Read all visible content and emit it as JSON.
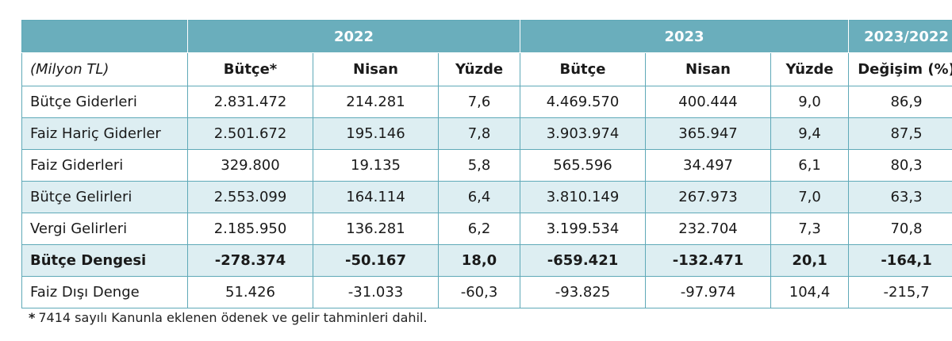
{
  "header": {
    "year_2022": "2022",
    "year_2023": "2023",
    "change_period": "2023/2022"
  },
  "subheader": {
    "unit": "(Milyon TL)",
    "butce_star": "Bütçe*",
    "nisan_2022": "Nisan",
    "yuzde_2022": "Yüzde",
    "butce_2023": "Bütçe",
    "nisan_2023": "Nisan",
    "yuzde_2023": "Yüzde",
    "degisim": "Değişim (%)"
  },
  "rows": [
    {
      "label": "Bütçe Giderleri",
      "b22": "2.831.472",
      "n22": "214.281",
      "y22": "7,6",
      "b23": "4.469.570",
      "n23": "400.444",
      "y23": "9,0",
      "chg": "86,9"
    },
    {
      "label": "Faiz Hariç Giderler",
      "b22": "2.501.672",
      "n22": "195.146",
      "y22": "7,8",
      "b23": "3.903.974",
      "n23": "365.947",
      "y23": "9,4",
      "chg": "87,5"
    },
    {
      "label": "Faiz Giderleri",
      "b22": "329.800",
      "n22": "19.135",
      "y22": "5,8",
      "b23": "565.596",
      "n23": "34.497",
      "y23": "6,1",
      "chg": "80,3"
    },
    {
      "label": "Bütçe Gelirleri",
      "b22": "2.553.099",
      "n22": "164.114",
      "y22": "6,4",
      "b23": "3.810.149",
      "n23": "267.973",
      "y23": "7,0",
      "chg": "63,3"
    },
    {
      "label": "Vergi Gelirleri",
      "b22": "2.185.950",
      "n22": "136.281",
      "y22": "6,2",
      "b23": "3.199.534",
      "n23": "232.704",
      "y23": "7,3",
      "chg": "70,8"
    },
    {
      "label": "Bütçe Dengesi",
      "b22": "-278.374",
      "n22": "-50.167",
      "y22": "18,0",
      "b23": "-659.421",
      "n23": "-132.471",
      "y23": "20,1",
      "chg": "-164,1"
    },
    {
      "label": "Faiz Dışı Denge",
      "b22": "51.426",
      "n22": "-31.033",
      "y22": "-60,3",
      "b23": "-93.825",
      "n23": "-97.974",
      "y23": "104,4",
      "chg": "-215,7"
    }
  ],
  "footnote": {
    "star": "*",
    "text": "7414 sayılı Kanunla eklenen ödenek ve gelir tahminleri dahil."
  },
  "colors": {
    "header_bg": "#6aaebc",
    "row_shade": "#ddeef2",
    "border": "#5fa9b8"
  }
}
